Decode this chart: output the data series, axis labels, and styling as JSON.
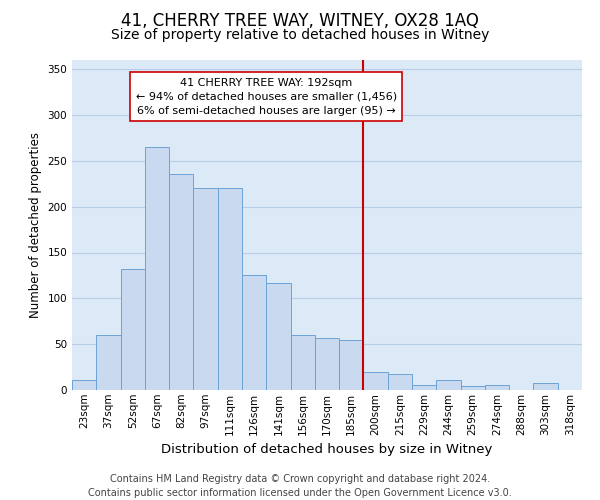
{
  "title": "41, CHERRY TREE WAY, WITNEY, OX28 1AQ",
  "subtitle": "Size of property relative to detached houses in Witney",
  "xlabel": "Distribution of detached houses by size in Witney",
  "ylabel": "Number of detached properties",
  "bin_labels": [
    "23sqm",
    "37sqm",
    "52sqm",
    "67sqm",
    "82sqm",
    "97sqm",
    "111sqm",
    "126sqm",
    "141sqm",
    "156sqm",
    "170sqm",
    "185sqm",
    "200sqm",
    "215sqm",
    "229sqm",
    "244sqm",
    "259sqm",
    "274sqm",
    "288sqm",
    "303sqm",
    "318sqm"
  ],
  "bar_heights": [
    11,
    60,
    132,
    265,
    236,
    220,
    220,
    125,
    117,
    60,
    57,
    55,
    20,
    17,
    6,
    11,
    4,
    5,
    0,
    8,
    0
  ],
  "bar_color": "#c9d9f0",
  "bar_edge_color": "#6ba3d6",
  "vline_color": "#cc0000",
  "annotation_title": "41 CHERRY TREE WAY: 192sqm",
  "annotation_line1": "← 94% of detached houses are smaller (1,456)",
  "annotation_line2": "6% of semi-detached houses are larger (95) →",
  "annotation_box_facecolor": "#ffffff",
  "annotation_box_edgecolor": "#cc0000",
  "ylim": [
    0,
    360
  ],
  "yticks": [
    0,
    50,
    100,
    150,
    200,
    250,
    300,
    350
  ],
  "footer_line1": "Contains HM Land Registry data © Crown copyright and database right 2024.",
  "footer_line2": "Contains public sector information licensed under the Open Government Licence v3.0.",
  "background_color": "#ffffff",
  "plot_bg_color": "#dce9f7",
  "grid_color": "#b8cee8",
  "title_fontsize": 12,
  "subtitle_fontsize": 10,
  "xlabel_fontsize": 9.5,
  "ylabel_fontsize": 8.5,
  "tick_fontsize": 7.5,
  "annotation_fontsize": 8,
  "footer_fontsize": 7
}
